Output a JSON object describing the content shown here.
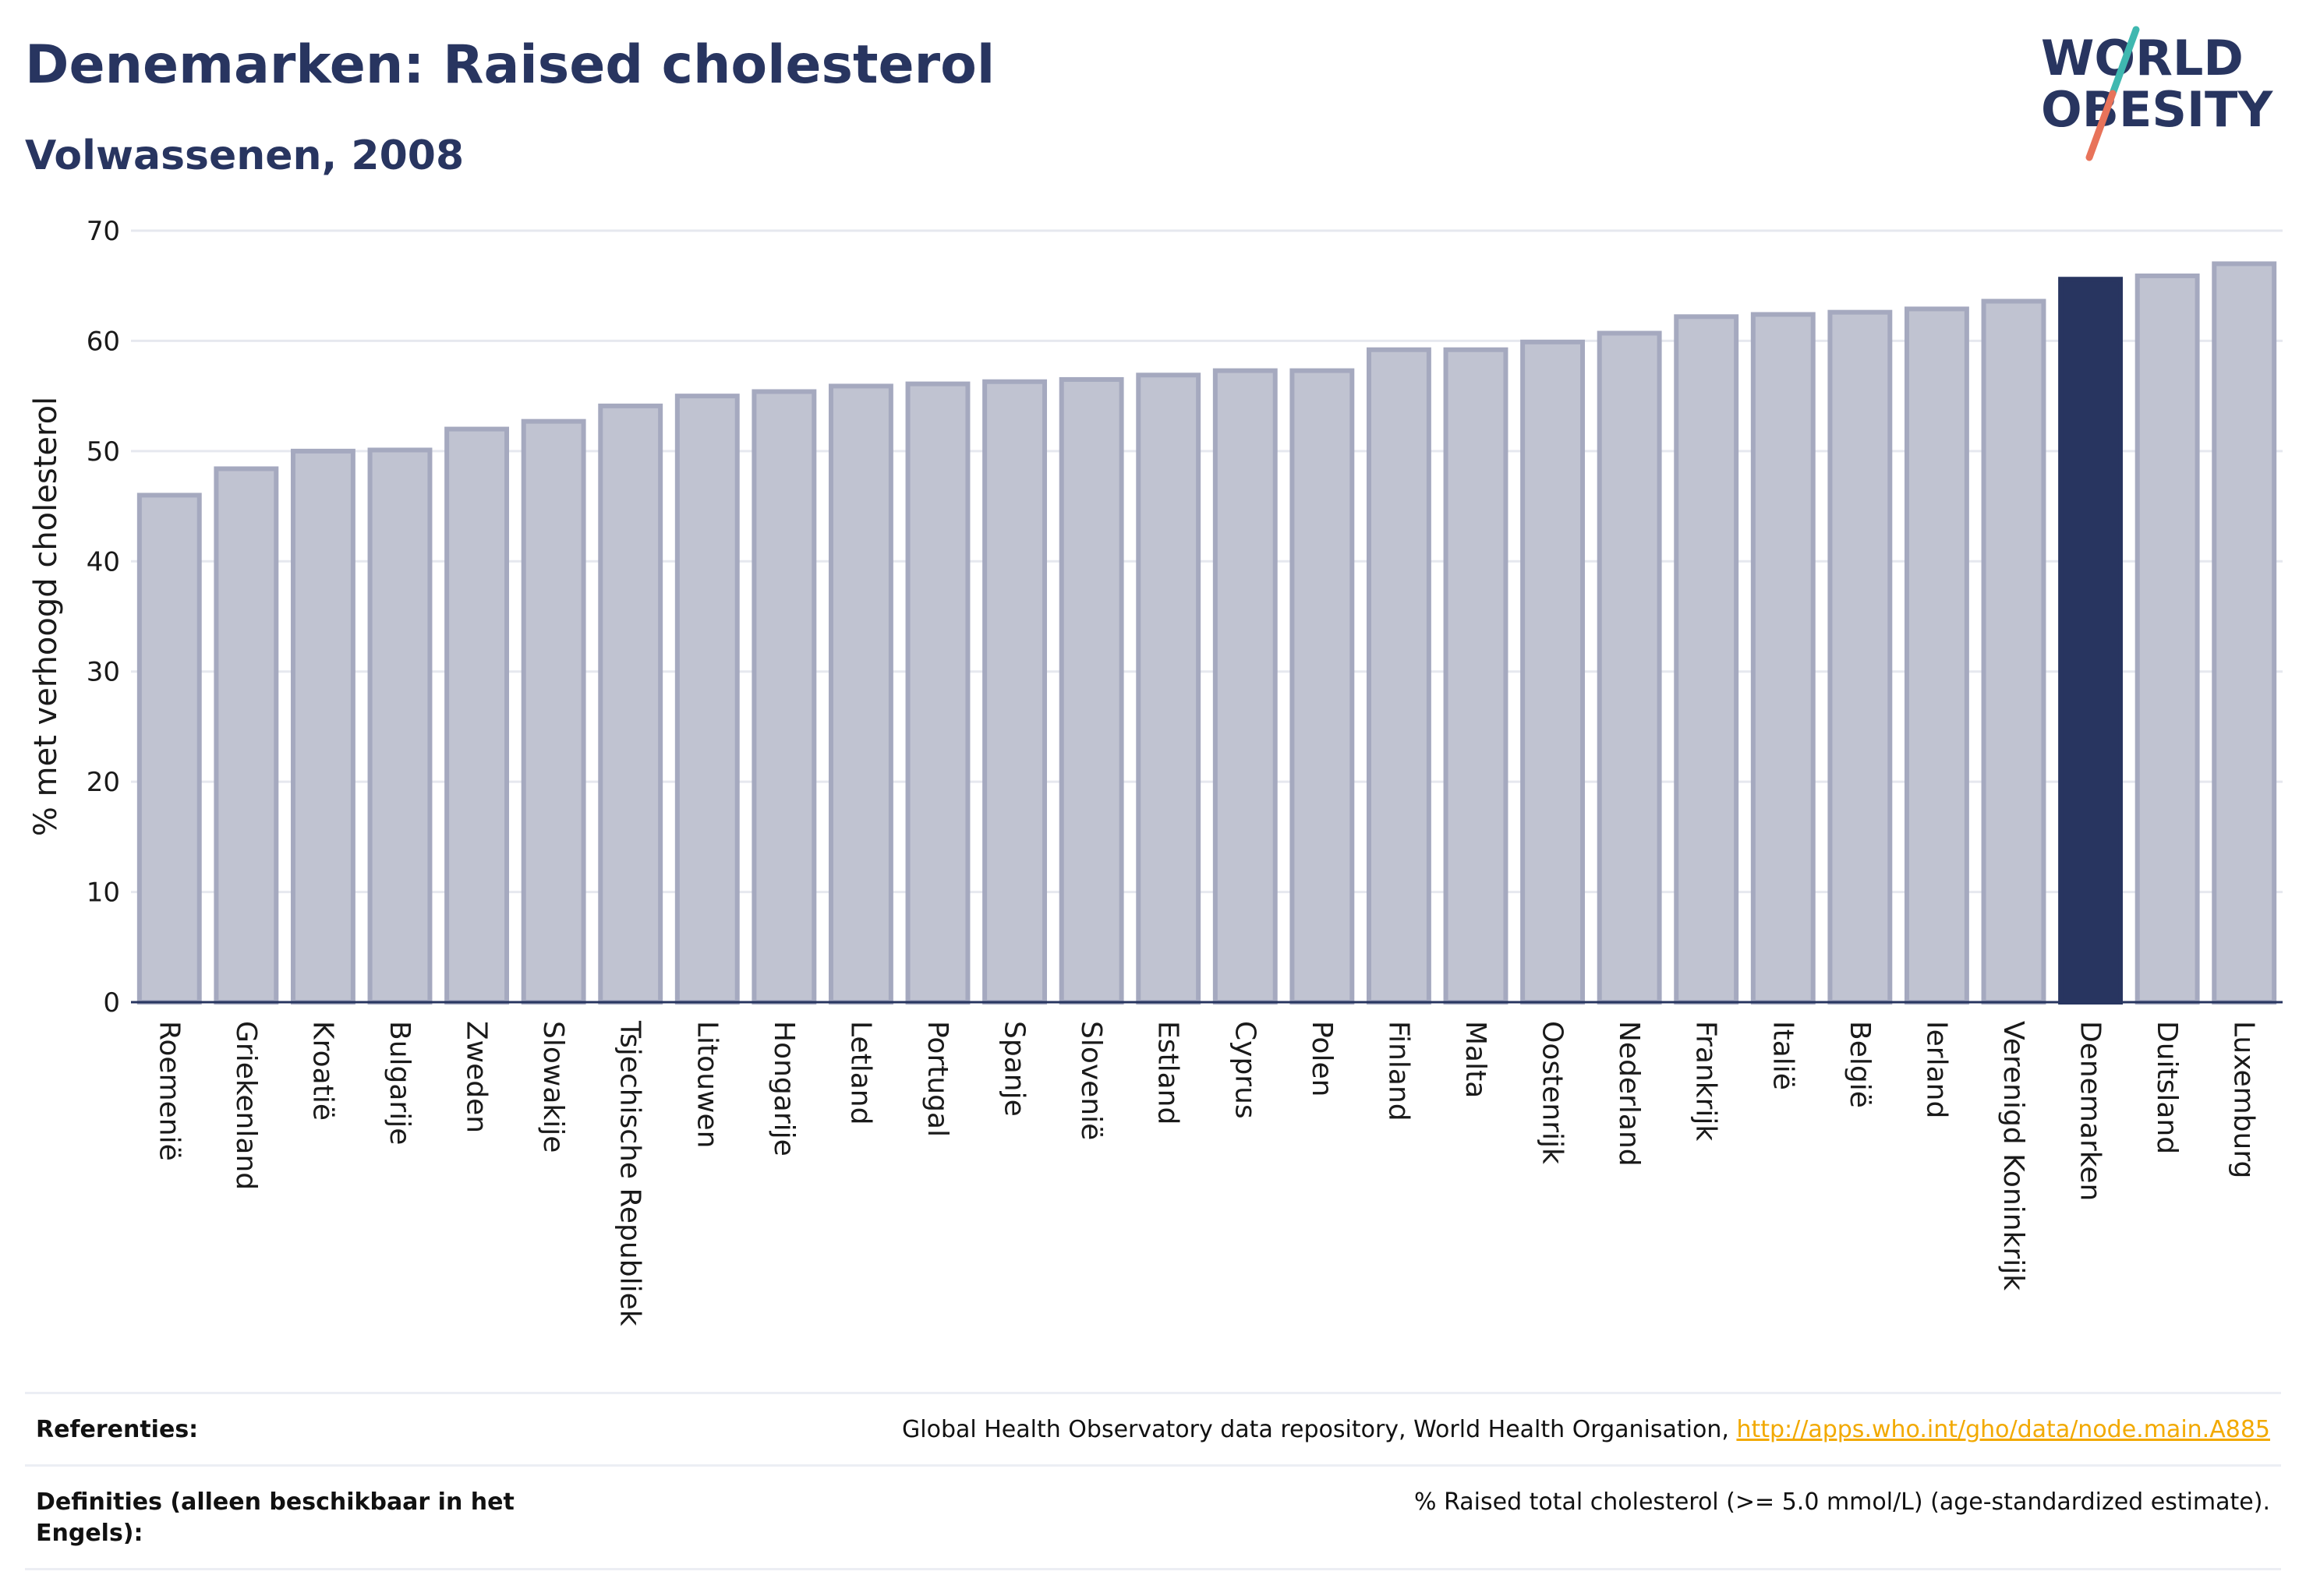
{
  "header": {
    "title": "Denemarken: Raised cholesterol",
    "subtitle": "Volwassenen, 2008"
  },
  "logo": {
    "line1": "WORLD",
    "line2": "OBESITY",
    "colors": {
      "text": "#283560",
      "slash_teal": "#3fb8b0",
      "slash_coral": "#e8735a"
    }
  },
  "chart_data": {
    "type": "bar",
    "title": "Denemarken: Raised cholesterol",
    "subtitle": "Volwassenen, 2008",
    "ylabel": "% met verhoogd cholesterol",
    "xlabel": "",
    "ylim": [
      0,
      70
    ],
    "yticks": [
      0,
      10,
      20,
      30,
      40,
      50,
      60,
      70
    ],
    "grid": true,
    "highlight": "Denemarken",
    "colors": {
      "bar": "#c0c3d1",
      "bar_border": "#a5a9bf",
      "highlight": "#283560",
      "grid": "#e6e8ef",
      "axis": "#283560"
    },
    "categories": [
      "Roemenië",
      "Griekenland",
      "Kroatië",
      "Bulgarije",
      "Zweden",
      "Slowakije",
      "Tsjechische Republiek",
      "Litouwen",
      "Hongarije",
      "Letland",
      "Portugal",
      "Spanje",
      "Slovenië",
      "Estland",
      "Cyprus",
      "Polen",
      "Finland",
      "Malta",
      "Oostenrijk",
      "Nederland",
      "Frankrijk",
      "Italië",
      "België",
      "Ierland",
      "Verenigd Koninkrijk",
      "Denemarken",
      "Duitsland",
      "Luxemburg"
    ],
    "values": [
      46.0,
      48.4,
      50.0,
      50.1,
      52.0,
      52.7,
      54.1,
      55.0,
      55.4,
      55.9,
      56.1,
      56.3,
      56.5,
      56.9,
      57.3,
      57.3,
      59.2,
      59.2,
      59.9,
      60.7,
      62.2,
      62.4,
      62.6,
      62.9,
      63.6,
      65.6,
      65.9,
      67.0
    ]
  },
  "footer": {
    "references_label": "Referenties:",
    "references_text": "Global Health Observatory data repository, World Health Organisation, ",
    "references_link": "http://apps.who.int/gho/data/node.main.A885",
    "definitions_label": "Definities (alleen beschikbaar in het Engels):",
    "definitions_text": "% Raised total cholesterol (>= 5.0 mmol/L) (age-standardized estimate)."
  }
}
